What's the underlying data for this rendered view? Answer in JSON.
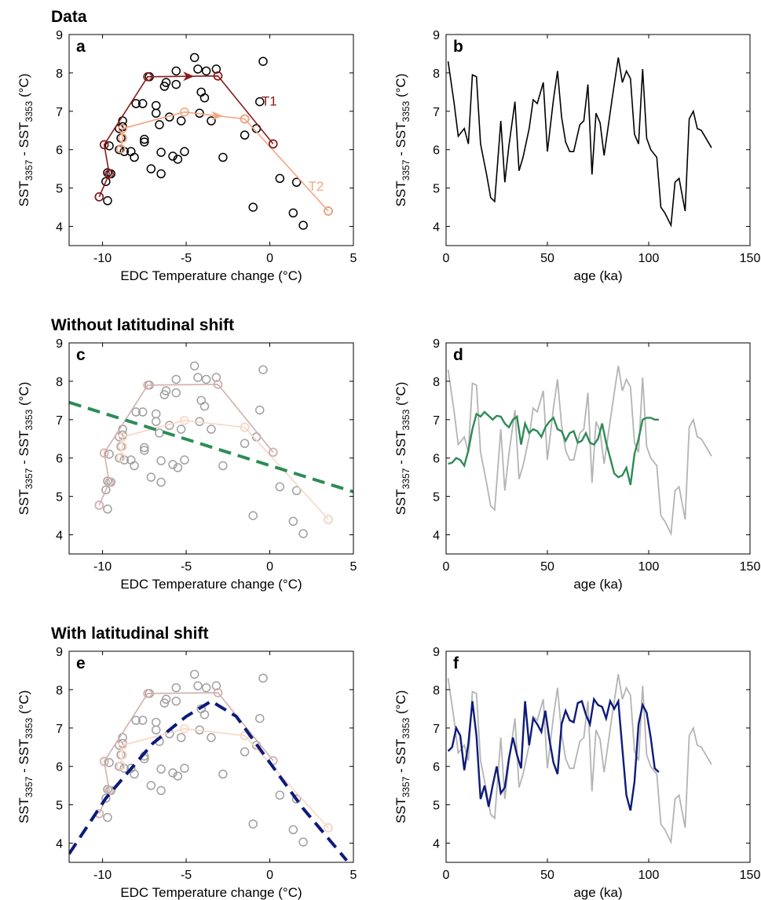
{
  "sections": [
    {
      "title": "Data"
    },
    {
      "title": "Without latitudinal shift"
    },
    {
      "title": "With latitudinal shift"
    }
  ],
  "colors": {
    "T1": "#8b1a1a",
    "T2": "#f4a582",
    "T1_faded": "#d2b0ad",
    "T2_faded": "#f8d6c6",
    "gray_points": "#a0a0a0",
    "green": "#2e8b57",
    "navy": "#0d1b7a",
    "gray_line": "#b4b4b4"
  },
  "scatter_points": [
    [
      -10.2,
      4.77
    ],
    [
      -9.8,
      5.17
    ],
    [
      -9.7,
      4.67
    ],
    [
      -9.7,
      5.4
    ],
    [
      -9.5,
      5.37
    ],
    [
      -9.9,
      6.13
    ],
    [
      -9.6,
      6.1
    ],
    [
      -9.0,
      6.0
    ],
    [
      -9.0,
      6.55
    ],
    [
      -8.8,
      6.6
    ],
    [
      -8.8,
      6.75
    ],
    [
      -8.9,
      6.3
    ],
    [
      -8.7,
      5.95
    ],
    [
      -8.3,
      5.95
    ],
    [
      -8.1,
      5.8
    ],
    [
      -8.0,
      7.2
    ],
    [
      -7.6,
      7.2
    ],
    [
      -7.5,
      6.2
    ],
    [
      -7.5,
      6.27
    ],
    [
      -7.2,
      7.9
    ],
    [
      -7.1,
      5.5
    ],
    [
      -6.8,
      7.15
    ],
    [
      -6.8,
      6.95
    ],
    [
      -6.6,
      6.65
    ],
    [
      -6.5,
      5.93
    ],
    [
      -6.5,
      5.37
    ],
    [
      -6.3,
      7.65
    ],
    [
      -6.2,
      7.75
    ],
    [
      -6.0,
      6.85
    ],
    [
      -5.8,
      5.83
    ],
    [
      -5.6,
      8.05
    ],
    [
      -5.6,
      7.7
    ],
    [
      -5.5,
      5.75
    ],
    [
      -5.3,
      6.75
    ],
    [
      -5.1,
      5.95
    ],
    [
      -4.5,
      8.4
    ],
    [
      -4.3,
      8.1
    ],
    [
      -4.2,
      6.95
    ],
    [
      -4.1,
      7.5
    ],
    [
      -3.9,
      7.35
    ],
    [
      -3.8,
      8.05
    ],
    [
      -3.5,
      6.75
    ],
    [
      -3.2,
      8.1
    ],
    [
      -3.1,
      7.92
    ],
    [
      -2.8,
      5.8
    ],
    [
      -1.5,
      6.8
    ],
    [
      -1.5,
      6.38
    ],
    [
      -1.0,
      4.5
    ],
    [
      -0.8,
      6.55
    ],
    [
      -0.6,
      7.25
    ],
    [
      -0.4,
      8.3
    ],
    [
      0.2,
      6.15
    ],
    [
      0.6,
      5.25
    ],
    [
      1.4,
      4.35
    ],
    [
      1.6,
      5.15
    ],
    [
      2.0,
      4.03
    ],
    [
      3.5,
      4.4
    ]
  ],
  "T1_curve": [
    [
      -10.2,
      4.77
    ],
    [
      -9.6,
      5.37
    ],
    [
      -9.9,
      6.13
    ],
    [
      -7.3,
      7.9
    ],
    [
      -3.1,
      7.92
    ],
    [
      0.2,
      6.15
    ]
  ],
  "T2_curve": [
    [
      -8.9,
      6.02
    ],
    [
      -8.8,
      6.3
    ],
    [
      -8.8,
      6.55
    ],
    [
      -5.1,
      6.98
    ],
    [
      -1.5,
      6.8
    ],
    [
      3.5,
      4.4
    ]
  ],
  "age_series": [
    [
      1,
      8.3
    ],
    [
      4,
      7.2
    ],
    [
      6,
      6.35
    ],
    [
      9,
      6.55
    ],
    [
      11,
      6.15
    ],
    [
      13,
      7.95
    ],
    [
      15,
      7.9
    ],
    [
      17,
      6.15
    ],
    [
      20,
      5.35
    ],
    [
      22,
      4.75
    ],
    [
      24,
      4.65
    ],
    [
      27,
      6.75
    ],
    [
      29,
      5.15
    ],
    [
      31,
      6.1
    ],
    [
      34,
      7.25
    ],
    [
      36,
      5.45
    ],
    [
      38,
      5.8
    ],
    [
      41,
      6.55
    ],
    [
      43,
      7.3
    ],
    [
      45,
      7.2
    ],
    [
      48,
      7.75
    ],
    [
      50,
      5.95
    ],
    [
      53,
      7.3
    ],
    [
      55,
      8.05
    ],
    [
      57,
      6.85
    ],
    [
      59,
      6.2
    ],
    [
      61,
      5.95
    ],
    [
      63,
      5.95
    ],
    [
      66,
      6.65
    ],
    [
      68,
      6.75
    ],
    [
      70,
      7.7
    ],
    [
      72,
      5.35
    ],
    [
      74,
      6.95
    ],
    [
      76,
      6.7
    ],
    [
      78,
      5.85
    ],
    [
      80,
      6.6
    ],
    [
      82,
      7.35
    ],
    [
      85,
      8.4
    ],
    [
      87,
      7.75
    ],
    [
      89,
      8.05
    ],
    [
      91,
      7.85
    ],
    [
      93,
      6.4
    ],
    [
      95,
      6.15
    ],
    [
      97,
      8.1
    ],
    [
      99,
      6.3
    ],
    [
      101,
      6.0
    ],
    [
      104,
      5.8
    ],
    [
      106,
      4.5
    ],
    [
      108,
      4.35
    ],
    [
      111,
      4.03
    ],
    [
      113,
      5.15
    ],
    [
      115,
      5.25
    ],
    [
      118,
      4.4
    ],
    [
      120,
      6.8
    ],
    [
      122,
      7.0
    ],
    [
      124,
      6.55
    ],
    [
      126,
      6.5
    ],
    [
      131,
      6.05
    ]
  ],
  "green_line": {
    "x1": -12,
    "y1": 7.45,
    "x2": 5,
    "y2": 5.12
  },
  "navy_dashed": [
    [
      -12,
      3.72
    ],
    [
      -9.8,
      5.17
    ],
    [
      -7,
      6.6
    ],
    [
      -5,
      7.3
    ],
    [
      -3.5,
      7.7
    ],
    [
      -2,
      7.3
    ],
    [
      0,
      6.1
    ],
    [
      2,
      4.9
    ],
    [
      4.6,
      3.55
    ]
  ],
  "green_series": [
    [
      1,
      5.85
    ],
    [
      3,
      5.88
    ],
    [
      5,
      6.0
    ],
    [
      7,
      5.95
    ],
    [
      9,
      5.8
    ],
    [
      11,
      6.2
    ],
    [
      13,
      6.75
    ],
    [
      15,
      7.15
    ],
    [
      17,
      7.08
    ],
    [
      19,
      7.2
    ],
    [
      21,
      7.1
    ],
    [
      23,
      7.0
    ],
    [
      25,
      7.1
    ],
    [
      27,
      7.08
    ],
    [
      29,
      6.9
    ],
    [
      31,
      6.8
    ],
    [
      33,
      7.0
    ],
    [
      35,
      7.08
    ],
    [
      37,
      6.35
    ],
    [
      39,
      6.9
    ],
    [
      41,
      6.65
    ],
    [
      43,
      6.75
    ],
    [
      45,
      6.7
    ],
    [
      47,
      6.55
    ],
    [
      49,
      6.8
    ],
    [
      51,
      6.95
    ],
    [
      53,
      7.05
    ],
    [
      55,
      6.75
    ],
    [
      57,
      6.7
    ],
    [
      59,
      6.45
    ],
    [
      61,
      6.65
    ],
    [
      63,
      6.7
    ],
    [
      65,
      6.4
    ],
    [
      67,
      6.45
    ],
    [
      69,
      6.65
    ],
    [
      71,
      6.4
    ],
    [
      73,
      6.35
    ],
    [
      75,
      6.5
    ],
    [
      77,
      6.9
    ],
    [
      79,
      6.4
    ],
    [
      81,
      6.0
    ],
    [
      83,
      5.6
    ],
    [
      85,
      5.5
    ],
    [
      87,
      5.55
    ],
    [
      89,
      5.75
    ],
    [
      91,
      5.3
    ],
    [
      93,
      6.1
    ],
    [
      95,
      6.5
    ],
    [
      97,
      7.0
    ],
    [
      99,
      7.05
    ],
    [
      101,
      7.05
    ],
    [
      103,
      7.0
    ],
    [
      105,
      7.0
    ]
  ],
  "navy_series": [
    [
      1,
      6.4
    ],
    [
      3,
      6.5
    ],
    [
      5,
      7.0
    ],
    [
      7,
      6.8
    ],
    [
      9,
      5.9
    ],
    [
      11,
      6.6
    ],
    [
      13,
      7.7
    ],
    [
      15,
      6.8
    ],
    [
      17,
      5.15
    ],
    [
      19,
      5.5
    ],
    [
      21,
      4.95
    ],
    [
      23,
      5.5
    ],
    [
      25,
      6.0
    ],
    [
      27,
      5.3
    ],
    [
      29,
      5.45
    ],
    [
      31,
      6.2
    ],
    [
      33,
      6.75
    ],
    [
      35,
      6.3
    ],
    [
      37,
      5.95
    ],
    [
      39,
      7.7
    ],
    [
      41,
      6.55
    ],
    [
      43,
      7.25
    ],
    [
      45,
      7.1
    ],
    [
      47,
      6.9
    ],
    [
      49,
      7.45
    ],
    [
      51,
      6.7
    ],
    [
      53,
      6.1
    ],
    [
      55,
      5.8
    ],
    [
      57,
      7.1
    ],
    [
      59,
      7.45
    ],
    [
      61,
      7.2
    ],
    [
      63,
      7.15
    ],
    [
      65,
      7.65
    ],
    [
      67,
      7.7
    ],
    [
      69,
      7.35
    ],
    [
      71,
      7.1
    ],
    [
      73,
      7.75
    ],
    [
      75,
      7.6
    ],
    [
      77,
      7.55
    ],
    [
      79,
      7.25
    ],
    [
      81,
      7.7
    ],
    [
      83,
      7.5
    ],
    [
      85,
      7.7
    ],
    [
      87,
      6.45
    ],
    [
      89,
      5.25
    ],
    [
      91,
      4.85
    ],
    [
      93,
      5.6
    ],
    [
      95,
      7.1
    ],
    [
      97,
      7.6
    ],
    [
      99,
      7.4
    ],
    [
      101,
      6.75
    ],
    [
      103,
      5.95
    ],
    [
      105,
      5.85
    ]
  ],
  "chart_data": [
    {
      "panel": "a",
      "type": "scatter",
      "xlabel": "EDC Temperature change (°C)",
      "ylabel": {
        "prefix": "SST",
        "sub1": "3357",
        "mid": " - SST",
        "sub2": "3353",
        "suffix": " (°C)"
      },
      "xlim": [
        -12,
        5
      ],
      "ylim": [
        3.5,
        9
      ],
      "xticks": [
        -10,
        -5,
        0,
        5
      ],
      "yticks": [
        4,
        5,
        6,
        7,
        8,
        9
      ],
      "annotations": [
        {
          "text": "T1",
          "x": -0.5,
          "y": 7.15
        },
        {
          "text": "T2",
          "x": 2.3,
          "y": 4.93
        }
      ],
      "series": [
        {
          "name": "T1"
        },
        {
          "name": "T2"
        }
      ]
    },
    {
      "panel": "b",
      "type": "line",
      "xlabel": "age (ka)",
      "ylabel": {
        "prefix": "SST",
        "sub1": "3357",
        "mid": " - SST",
        "sub2": "3353",
        "suffix": " (°C)"
      },
      "xlim": [
        0,
        150
      ],
      "ylim": [
        3.5,
        9
      ],
      "xticks": [
        0,
        50,
        100,
        150
      ],
      "yticks": [
        4,
        5,
        6,
        7,
        8,
        9
      ]
    },
    {
      "panel": "c",
      "type": "scatter",
      "xlabel": "EDC Temperature change (°C)",
      "ylabel": {
        "prefix": "SST",
        "sub1": "3357",
        "mid": " - SST",
        "sub2": "3353",
        "suffix": " (°C)"
      },
      "xlim": [
        -12,
        5
      ],
      "ylim": [
        3.5,
        9
      ],
      "xticks": [
        -10,
        -5,
        0,
        5
      ],
      "yticks": [
        4,
        5,
        6,
        7,
        8,
        9
      ]
    },
    {
      "panel": "d",
      "type": "line",
      "xlabel": "age (ka)",
      "ylabel": {
        "prefix": "SST",
        "sub1": "3357",
        "mid": " - SST",
        "sub2": "3353",
        "suffix": " (°C)"
      },
      "xlim": [
        0,
        150
      ],
      "ylim": [
        3.5,
        9
      ],
      "xticks": [
        0,
        50,
        100,
        150
      ],
      "yticks": [
        4,
        5,
        6,
        7,
        8,
        9
      ]
    },
    {
      "panel": "e",
      "type": "scatter",
      "xlabel": "EDC Temperature change (°C)",
      "ylabel": {
        "prefix": "SST",
        "sub1": "3357",
        "mid": " - SST",
        "sub2": "3353",
        "suffix": " (°C)"
      },
      "xlim": [
        -12,
        5
      ],
      "ylim": [
        3.5,
        9
      ],
      "xticks": [
        -10,
        -5,
        0,
        5
      ],
      "yticks": [
        4,
        5,
        6,
        7,
        8,
        9
      ]
    },
    {
      "panel": "f",
      "type": "line",
      "xlabel": "age (ka)",
      "ylabel": {
        "prefix": "SST",
        "sub1": "3357",
        "mid": " - SST",
        "sub2": "3353",
        "suffix": " (°C)"
      },
      "xlim": [
        0,
        150
      ],
      "ylim": [
        3.5,
        9
      ],
      "xticks": [
        0,
        50,
        100,
        150
      ],
      "yticks": [
        4,
        5,
        6,
        7,
        8,
        9
      ]
    }
  ]
}
